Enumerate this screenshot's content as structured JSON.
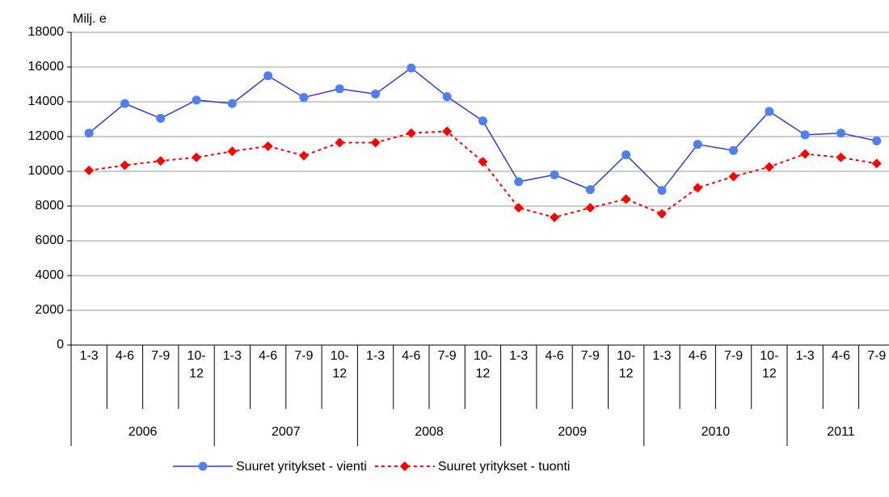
{
  "chart_data": {
    "type": "line",
    "y_label": "Milj. e",
    "categories": [
      "1-3",
      "4-6",
      "7-9",
      "10-12",
      "1-3",
      "4-6",
      "7-9",
      "10-12",
      "1-3",
      "4-6",
      "7-9",
      "10-12",
      "1-3",
      "4-6",
      "7-9",
      "10-12",
      "1-3",
      "4-6",
      "7-9",
      "10-12",
      "1-3",
      "4-6",
      "7-9"
    ],
    "groups": [
      "2006",
      "2007",
      "2008",
      "2009",
      "2010",
      "2011"
    ],
    "series": [
      {
        "name": "Suuret yritykset - vienti",
        "color": "#2a3fd6",
        "marker_color": "#4f7ff0",
        "marker": "circle",
        "dash": false,
        "values": [
          12200,
          13900,
          13050,
          14100,
          13900,
          15500,
          14250,
          14750,
          14450,
          15950,
          14300,
          12900,
          9400,
          9800,
          8950,
          10950,
          8900,
          11550,
          11200,
          13450,
          12100,
          12200,
          11750
        ]
      },
      {
        "name": "Suuret yritykset - tuonti",
        "color": "#ff0000",
        "marker_color": "#ff0000",
        "marker": "diamond",
        "dash": true,
        "values": [
          10050,
          10350,
          10600,
          10800,
          11150,
          11450,
          10900,
          11650,
          11650,
          12200,
          12300,
          10550,
          7900,
          7350,
          7900,
          8400,
          7550,
          9050,
          9700,
          10250,
          11000,
          10800,
          10450
        ]
      }
    ],
    "ylim": [
      0,
      18000
    ],
    "yticks": [
      0,
      2000,
      4000,
      6000,
      8000,
      10000,
      12000,
      14000,
      16000,
      18000
    ],
    "grid": true,
    "legend": "bottom"
  }
}
